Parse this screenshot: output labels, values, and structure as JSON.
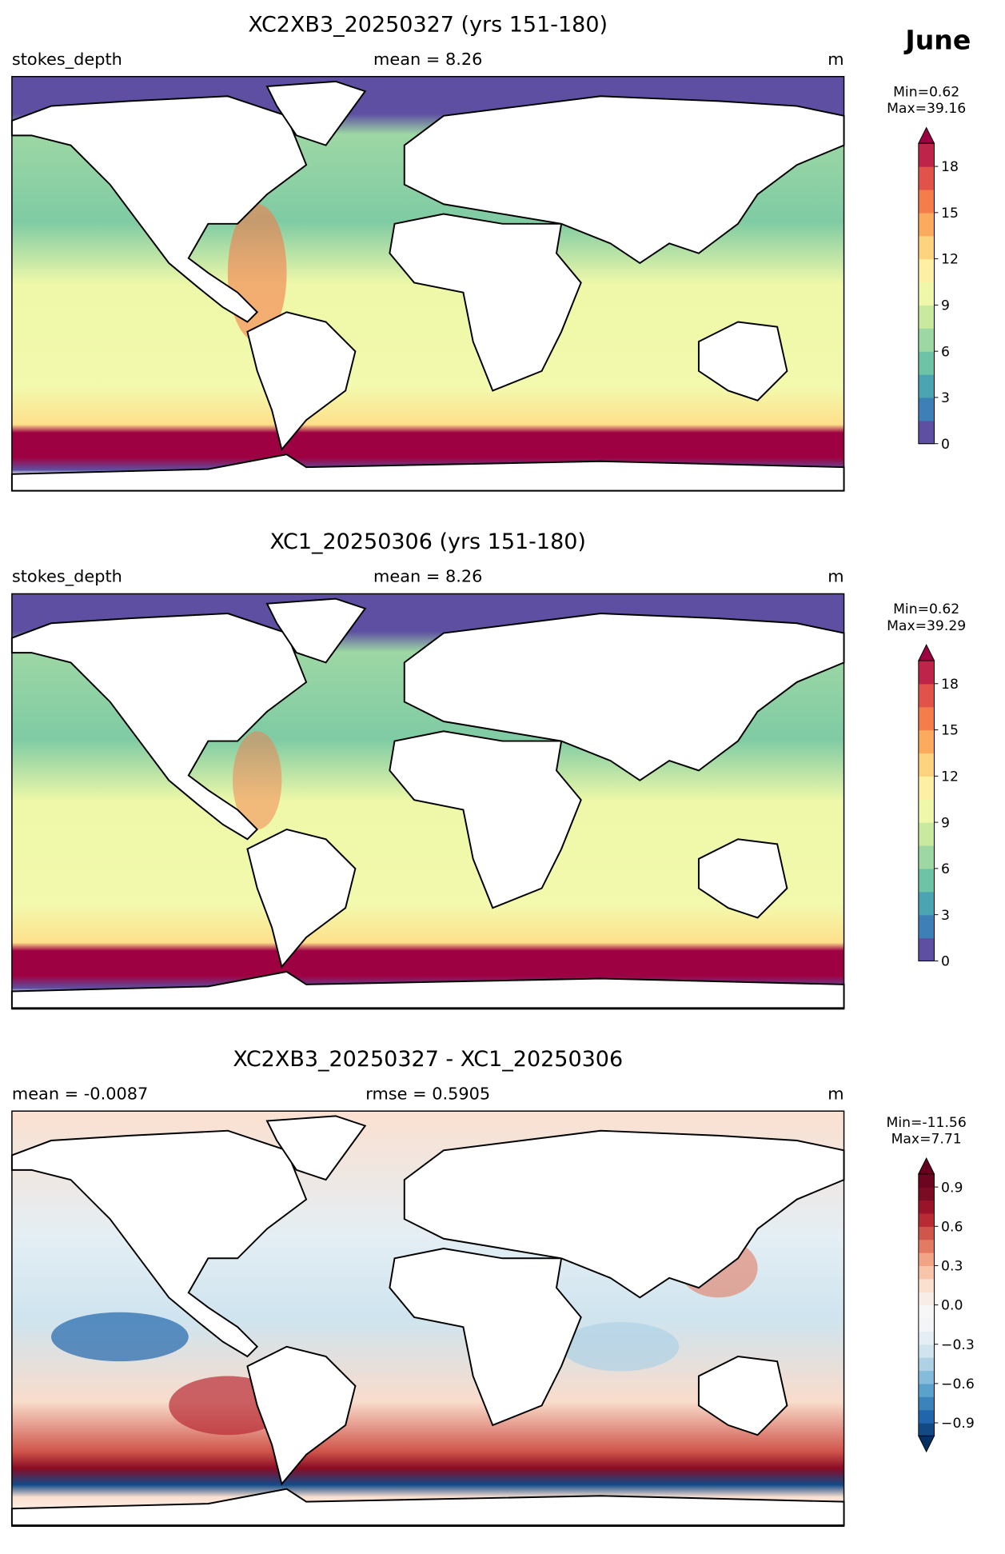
{
  "suptitle": "June",
  "panels": [
    {
      "title": "XC2XB3_20250327 (yrs 151-180)",
      "left": "stokes_depth",
      "center": "mean = 8.26",
      "right": "m",
      "colorbar": {
        "stats": [
          "Min=0.62",
          "Max=39.16"
        ],
        "lim": [
          0,
          19.5
        ],
        "ticks": [
          0,
          3,
          6,
          9,
          12,
          15,
          18
        ],
        "extend": "max",
        "colors": [
          "#5e4fa2",
          "#3f7fb8",
          "#4ba4b1",
          "#6cc3a5",
          "#9dd7a4",
          "#c9e99e",
          "#eef8a8",
          "#fef0a3",
          "#fdd380",
          "#fbaa5e",
          "#f57c4b",
          "#e0524a",
          "#be2449"
        ],
        "over": "#9e0142"
      }
    },
    {
      "title": "XC1_20250306 (yrs 151-180)",
      "left": "stokes_depth",
      "center": "mean = 8.26",
      "right": "m",
      "colorbar": {
        "stats": [
          "Min=0.62",
          "Max=39.29"
        ],
        "lim": [
          0,
          19.5
        ],
        "ticks": [
          0,
          3,
          6,
          9,
          12,
          15,
          18
        ],
        "extend": "max",
        "colors": [
          "#5e4fa2",
          "#3f7fb8",
          "#4ba4b1",
          "#6cc3a5",
          "#9dd7a4",
          "#c9e99e",
          "#eef8a8",
          "#fef0a3",
          "#fdd380",
          "#fbaa5e",
          "#f57c4b",
          "#e0524a",
          "#be2449"
        ],
        "over": "#9e0142"
      }
    },
    {
      "title": "XC2XB3_20250327 - XC1_20250306",
      "left": "mean = -0.0087",
      "center": "rmse = 0.5905",
      "right": "m",
      "colorbar": {
        "stats": [
          "Min=-11.56",
          "Max=7.71"
        ],
        "lim": [
          -1,
          1
        ],
        "ticks": [
          {
            "value": -0.9,
            "label": "−0.9"
          },
          {
            "value": -0.6,
            "label": "−0.6"
          },
          {
            "value": -0.3,
            "label": "−0.3"
          },
          {
            "value": 0,
            "label": "0.0"
          },
          0.3,
          0.6,
          0.9
        ],
        "extend": "both",
        "colors": [
          "#124a86",
          "#2166ac",
          "#3a84bb",
          "#5aa1cc",
          "#86bcdb",
          "#aed1e6",
          "#cfe4ef",
          "#e4eef4",
          "#f3f5f6",
          "#f7f7f7",
          "#f9eee7",
          "#fbe0d0",
          "#f8c5ab",
          "#f2a485",
          "#e27b62",
          "#d0554b",
          "#b82b35",
          "#9a1429",
          "#7a0b22",
          "#6d0420"
        ],
        "under": "#053061",
        "over": "#67001f"
      }
    }
  ]
}
